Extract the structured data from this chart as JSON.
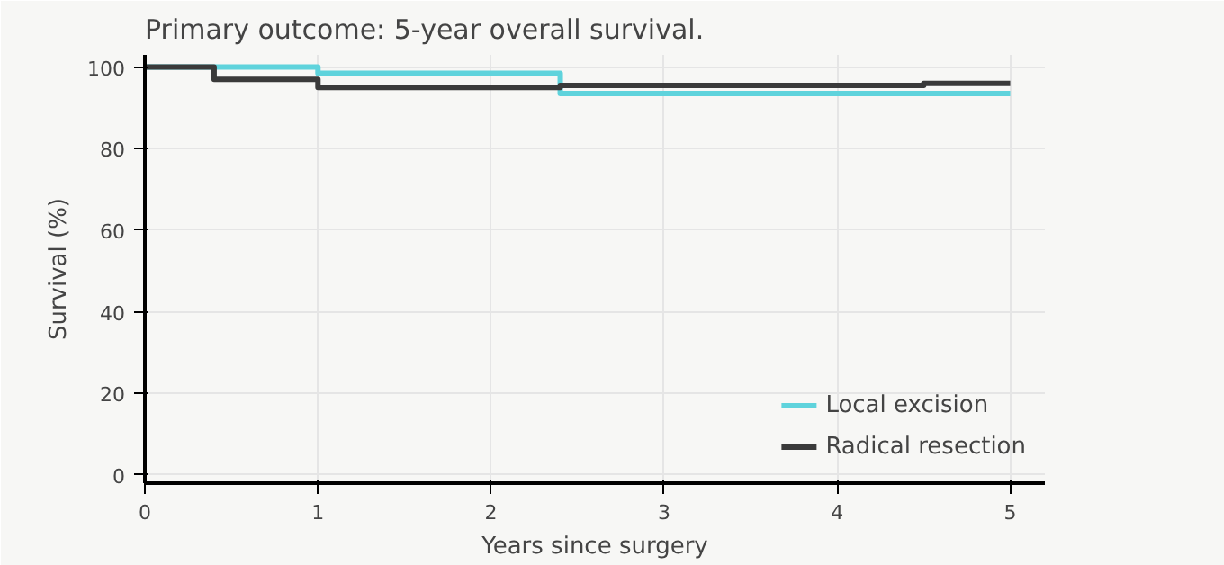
{
  "chart_data": {
    "type": "step",
    "title": "Primary outcome: 5-year overall survival.",
    "xlabel": "Years since surgery",
    "ylabel": "Survival (%)",
    "series": [
      {
        "name": "Local excision",
        "color": "#5fd3dc",
        "x": [
          0,
          1.0,
          2.4,
          5
        ],
        "values": [
          100,
          98.5,
          93.5,
          93.5
        ]
      },
      {
        "name": "Radical resection",
        "color": "#3a3a3a",
        "x": [
          0,
          0.4,
          1.0,
          2.4,
          4.5,
          5
        ],
        "values": [
          100,
          97,
          95,
          95.5,
          96,
          96
        ]
      }
    ],
    "xlim": [
      0,
      5.2
    ],
    "ylim": [
      -2,
      103
    ],
    "xticks": [
      0,
      1,
      2,
      3,
      4,
      5
    ],
    "yticks": [
      0,
      20,
      40,
      60,
      80,
      100
    ],
    "grid": true,
    "legend": "bottom right",
    "line_style": "solid"
  }
}
